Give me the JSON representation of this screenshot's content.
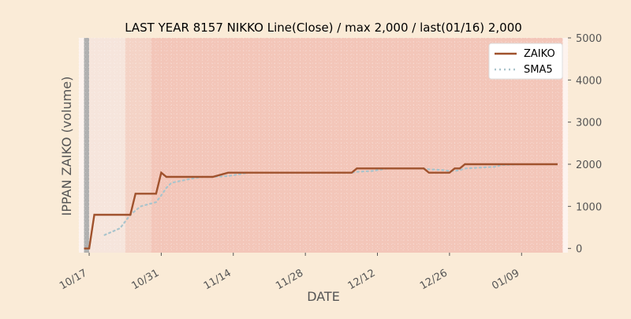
{
  "chart_data": {
    "type": "line",
    "title": "LAST YEAR 8157 NIKKO Line(Close) / max 2,000 / last(01/16) 2,000",
    "xlabel": "DATE",
    "ylabel": "IPPAN ZAIKO (volume)",
    "ylim": [
      -100,
      5000
    ],
    "yticks": [
      0,
      1000,
      2000,
      3000,
      4000,
      5000
    ],
    "ytick_labels": [
      "0",
      "1000",
      "2000",
      "3000",
      "4000",
      "5000"
    ],
    "xtick_dates": [
      "2023-10-17",
      "2023-10-31",
      "2023-11-14",
      "2023-11-28",
      "2023-12-12",
      "2023-12-26",
      "2024-01-09"
    ],
    "xtick_labels": [
      "10/17",
      "10/31",
      "11/14",
      "11/28",
      "12/12",
      "12/26",
      "01/09"
    ],
    "xlim": [
      "2023-10-15",
      "2024-01-18"
    ],
    "legend_position": "top-right",
    "grid": true,
    "colors": {
      "background": "#faebd7",
      "plot_background": "#f3c6b9",
      "zaiko_line": "#a0522d",
      "sma_line": "#a9c4cc",
      "gray_band": "#b0b0b0",
      "light_band": "#f6e5dc",
      "mid_band": "#f4d3c6"
    },
    "bands": [
      {
        "start": "2023-10-16",
        "end": "2023-10-17",
        "color": "#b0b0b0"
      },
      {
        "start": "2023-10-17",
        "end": "2023-10-24",
        "color": "#f6e5dc"
      },
      {
        "start": "2023-10-24",
        "end": "2023-10-29",
        "color": "#f4d3c6"
      },
      {
        "start": "2023-10-29",
        "end": "2024-01-17",
        "color": "#f3c6b9"
      }
    ],
    "series": [
      {
        "name": "ZAIKO",
        "style": "solid",
        "points": [
          [
            "2023-10-16",
            0
          ],
          [
            "2023-10-17",
            0
          ],
          [
            "2023-10-18",
            800
          ],
          [
            "2023-10-19",
            800
          ],
          [
            "2023-10-20",
            800
          ],
          [
            "2023-10-23",
            800
          ],
          [
            "2023-10-24",
            800
          ],
          [
            "2023-10-25",
            800
          ],
          [
            "2023-10-26",
            1300
          ],
          [
            "2023-10-27",
            1300
          ],
          [
            "2023-10-30",
            1300
          ],
          [
            "2023-10-31",
            1800
          ],
          [
            "2023-11-01",
            1700
          ],
          [
            "2023-11-02",
            1700
          ],
          [
            "2023-11-06",
            1700
          ],
          [
            "2023-11-08",
            1700
          ],
          [
            "2023-11-09",
            1700
          ],
          [
            "2023-11-10",
            1700
          ],
          [
            "2023-11-13",
            1800
          ],
          [
            "2023-11-14",
            1800
          ],
          [
            "2023-11-20",
            1800
          ],
          [
            "2023-11-30",
            1800
          ],
          [
            "2023-12-06",
            1800
          ],
          [
            "2023-12-07",
            1800
          ],
          [
            "2023-12-08",
            1900
          ],
          [
            "2023-12-13",
            1900
          ],
          [
            "2023-12-20",
            1900
          ],
          [
            "2023-12-21",
            1900
          ],
          [
            "2023-12-22",
            1800
          ],
          [
            "2023-12-25",
            1800
          ],
          [
            "2023-12-26",
            1800
          ],
          [
            "2023-12-27",
            1900
          ],
          [
            "2023-12-28",
            1900
          ],
          [
            "2023-12-29",
            2000
          ],
          [
            "2024-01-04",
            2000
          ],
          [
            "2024-01-10",
            2000
          ],
          [
            "2024-01-16",
            2000
          ]
        ]
      },
      {
        "name": "SMA5",
        "style": "dotted",
        "points": [
          [
            "2023-10-20",
            320
          ],
          [
            "2023-10-23",
            480
          ],
          [
            "2023-10-24",
            640
          ],
          [
            "2023-10-25",
            800
          ],
          [
            "2023-10-26",
            900
          ],
          [
            "2023-10-27",
            1000
          ],
          [
            "2023-10-30",
            1100
          ],
          [
            "2023-10-31",
            1260
          ],
          [
            "2023-11-01",
            1440
          ],
          [
            "2023-11-02",
            1560
          ],
          [
            "2023-11-06",
            1660
          ],
          [
            "2023-11-08",
            1700
          ],
          [
            "2023-11-09",
            1700
          ],
          [
            "2023-11-10",
            1700
          ],
          [
            "2023-11-13",
            1720
          ],
          [
            "2023-11-14",
            1740
          ],
          [
            "2023-11-15",
            1760
          ],
          [
            "2023-11-16",
            1780
          ],
          [
            "2023-11-17",
            1800
          ],
          [
            "2023-12-07",
            1800
          ],
          [
            "2023-12-08",
            1820
          ],
          [
            "2023-12-11",
            1840
          ],
          [
            "2023-12-12",
            1860
          ],
          [
            "2023-12-13",
            1880
          ],
          [
            "2023-12-14",
            1900
          ],
          [
            "2023-12-21",
            1900
          ],
          [
            "2023-12-22",
            1880
          ],
          [
            "2023-12-25",
            1860
          ],
          [
            "2023-12-26",
            1840
          ],
          [
            "2023-12-27",
            1840
          ],
          [
            "2023-12-28",
            1860
          ],
          [
            "2023-12-29",
            1900
          ],
          [
            "2024-01-04",
            1940
          ],
          [
            "2024-01-05",
            1980
          ],
          [
            "2024-01-09",
            2000
          ],
          [
            "2024-01-16",
            2000
          ]
        ]
      }
    ]
  }
}
